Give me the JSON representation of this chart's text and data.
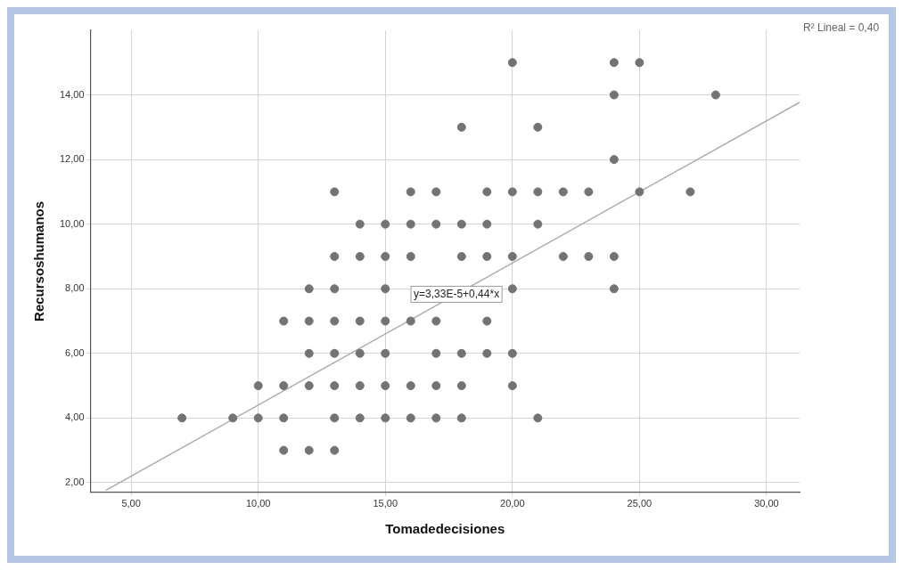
{
  "chart_data": {
    "type": "scatter",
    "xlabel": "Tomadedecisiones",
    "ylabel": "Recursoshumanos",
    "xlim": [
      3.4,
      31.3
    ],
    "ylim": [
      1.7,
      16
    ],
    "xticks": [
      {
        "value": 5,
        "label": "5,00"
      },
      {
        "value": 10,
        "label": "10,00"
      },
      {
        "value": 15,
        "label": "15,00"
      },
      {
        "value": 20,
        "label": "20,00"
      },
      {
        "value": 25,
        "label": "25,00"
      },
      {
        "value": 30,
        "label": "30,00"
      }
    ],
    "yticks": [
      {
        "value": 2,
        "label": "2,00"
      },
      {
        "value": 4,
        "label": "4,00"
      },
      {
        "value": 6,
        "label": "6,00"
      },
      {
        "value": 8,
        "label": "8,00"
      },
      {
        "value": 10,
        "label": "10,00"
      },
      {
        "value": 12,
        "label": "12,00"
      },
      {
        "value": 14,
        "label": "14,00"
      }
    ],
    "grid": true,
    "series": [
      {
        "marker": "circle",
        "color": "#737373",
        "x": [
          20,
          24,
          25,
          24,
          28,
          18,
          21,
          24,
          13,
          16,
          17,
          19,
          20,
          21,
          22,
          23,
          25,
          27,
          14,
          15,
          16,
          17,
          18,
          19,
          21,
          13,
          14,
          15,
          16,
          18,
          19,
          20,
          22,
          23,
          24,
          12,
          13,
          15,
          20,
          24,
          11,
          12,
          13,
          14,
          15,
          16,
          17,
          19,
          12,
          13,
          14,
          15,
          17,
          18,
          19,
          20,
          10,
          11,
          12,
          13,
          14,
          15,
          16,
          17,
          18,
          20,
          7,
          9,
          10,
          11,
          13,
          14,
          15,
          16,
          17,
          18,
          21,
          11,
          12,
          13
        ],
        "values": [
          15,
          15,
          15,
          14,
          14,
          13,
          13,
          12,
          11,
          11,
          11,
          11,
          11,
          11,
          11,
          11,
          11,
          11,
          10,
          10,
          10,
          10,
          10,
          10,
          10,
          9,
          9,
          9,
          9,
          9,
          9,
          9,
          9,
          9,
          9,
          8,
          8,
          8,
          8,
          8,
          7,
          7,
          7,
          7,
          7,
          7,
          7,
          7,
          6,
          6,
          6,
          6,
          6,
          6,
          6,
          6,
          5,
          5,
          5,
          5,
          5,
          5,
          5,
          5,
          5,
          5,
          4,
          4,
          4,
          4,
          4,
          4,
          4,
          4,
          4,
          4,
          4,
          3,
          3,
          3
        ]
      },
      {
        "type": "line",
        "marker": "none",
        "color": "#a6a6a6",
        "x": [
          4,
          31.3
        ],
        "values": [
          1.76,
          13.77
        ]
      }
    ],
    "annotations": [
      "R² Lineal = 0,40",
      {
        "text": "y=3,33E-5+0,44*x",
        "x": 17.8,
        "y": 7.83
      }
    ]
  }
}
